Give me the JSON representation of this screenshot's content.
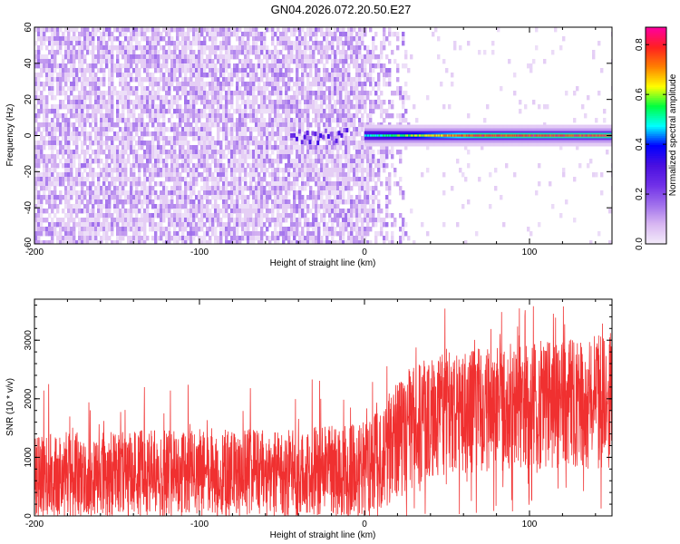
{
  "title": "GN04.2026.072.20.50.E27",
  "colors": {
    "accent": "#f03030",
    "frame": "#000000",
    "background": "#ffffff"
  },
  "chart_data": [
    {
      "type": "heatmap",
      "title": "GN04.2026.072.20.50.E27",
      "xlabel": "Height of straight line (km)",
      "ylabel": "Frequency (Hz)",
      "xlim": [
        -200,
        150
      ],
      "ylim": [
        -60,
        60
      ],
      "xticks": [
        -200,
        -100,
        0,
        100
      ],
      "yticks": [
        -60,
        -40,
        -20,
        0,
        20,
        40,
        60
      ],
      "colorbar": {
        "label": "Normalized spectral amplitude",
        "range": [
          0.0,
          0.87
        ],
        "ticks": [
          0.0,
          0.2,
          0.4,
          0.6,
          0.8
        ],
        "tick_labels": [
          "0.0",
          "0.2",
          "0.4",
          "0.6",
          "0.8"
        ],
        "colormap": [
          "#f4ecfa",
          "#d9b8f2",
          "#a070ec",
          "#7030e8",
          "#4a10e0",
          "#0000ff",
          "#00ffff",
          "#00ff40",
          "#ffff00",
          "#ff8000",
          "#ff2020",
          "#ff00a0"
        ]
      },
      "features": {
        "noise_region_x": [
          -200,
          10
        ],
        "noise_fade_x": [
          0,
          30
        ],
        "noise_amplitude": 0.15,
        "carrier_line_freq": 0,
        "carrier_line_x": [
          0,
          150
        ],
        "carrier_line_amplitude_start": 0.5,
        "carrier_line_amplitude_end": 0.85,
        "weak_line_x": [
          -45,
          -10
        ],
        "weak_line_amplitude": 0.4
      }
    },
    {
      "type": "line",
      "xlabel": "Height of straight line (km)",
      "ylabel": "SNR (10 * v/v)",
      "xlim": [
        -200,
        150
      ],
      "ylim": [
        0,
        3700
      ],
      "xticks": [
        -200,
        -100,
        0,
        100
      ],
      "yticks": [
        0,
        1000,
        2000,
        3000
      ],
      "series": [
        {
          "name": "SNR",
          "color": "#f03030",
          "envelope_x": [
            -200,
            -150,
            -100,
            -50,
            -20,
            0,
            10,
            20,
            30,
            50,
            100,
            150
          ],
          "envelope_low": [
            0,
            0,
            0,
            0,
            0,
            0,
            100,
            200,
            500,
            700,
            800,
            800
          ],
          "envelope_mid": [
            650,
            700,
            720,
            750,
            760,
            790,
            1100,
            1500,
            1700,
            1800,
            1900,
            2000
          ],
          "envelope_high": [
            1400,
            1450,
            1500,
            1500,
            1550,
            1600,
            1900,
            2300,
            2600,
            2800,
            3000,
            3100
          ],
          "spike_max": 3600
        }
      ]
    }
  ]
}
